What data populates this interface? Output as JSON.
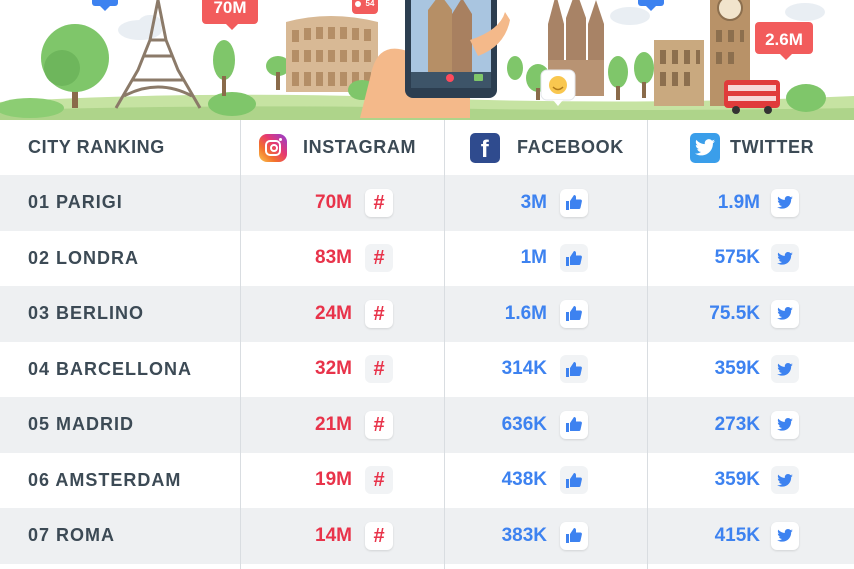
{
  "colors": {
    "instagram_value": "#e8334a",
    "facebook_value": "#3d82f0",
    "twitter_value": "#3d82f0",
    "header_text": "#3c4a55",
    "row_alt_bg": "#eef0f2"
  },
  "banner": {
    "bubble_left": "70M",
    "bubble_small": "54",
    "bubble_right": "2.6M",
    "landmarks": [
      "eiffel-tower",
      "colosseum",
      "sagrada-familia",
      "big-ben",
      "london-bus"
    ]
  },
  "header": {
    "col1": "CITY RANKING",
    "col2": "INSTAGRAM",
    "col3": "FACEBOOK",
    "col4": "TWITTER",
    "icons": [
      "instagram-logo-icon",
      "facebook-logo-icon",
      "twitter-logo-icon"
    ]
  },
  "rows": [
    {
      "city": "01 PARIGI",
      "instagram": "70M",
      "facebook": "3M",
      "twitter": "1.9M"
    },
    {
      "city": "02 LONDRA",
      "instagram": "83M",
      "facebook": "1M",
      "twitter": "575K"
    },
    {
      "city": "03 BERLINO",
      "instagram": "24M",
      "facebook": "1.6M",
      "twitter": "75.5K"
    },
    {
      "city": "04 BARCELLONA",
      "instagram": "32M",
      "facebook": "314K",
      "twitter": "359K"
    },
    {
      "city": "05 MADRID",
      "instagram": "21M",
      "facebook": "636K",
      "twitter": "273K"
    },
    {
      "city": "06 AMSTERDAM",
      "instagram": "19M",
      "facebook": "438K",
      "twitter": "359K"
    },
    {
      "city": "07 ROMA",
      "instagram": "14M",
      "facebook": "383K",
      "twitter": "415K"
    }
  ]
}
